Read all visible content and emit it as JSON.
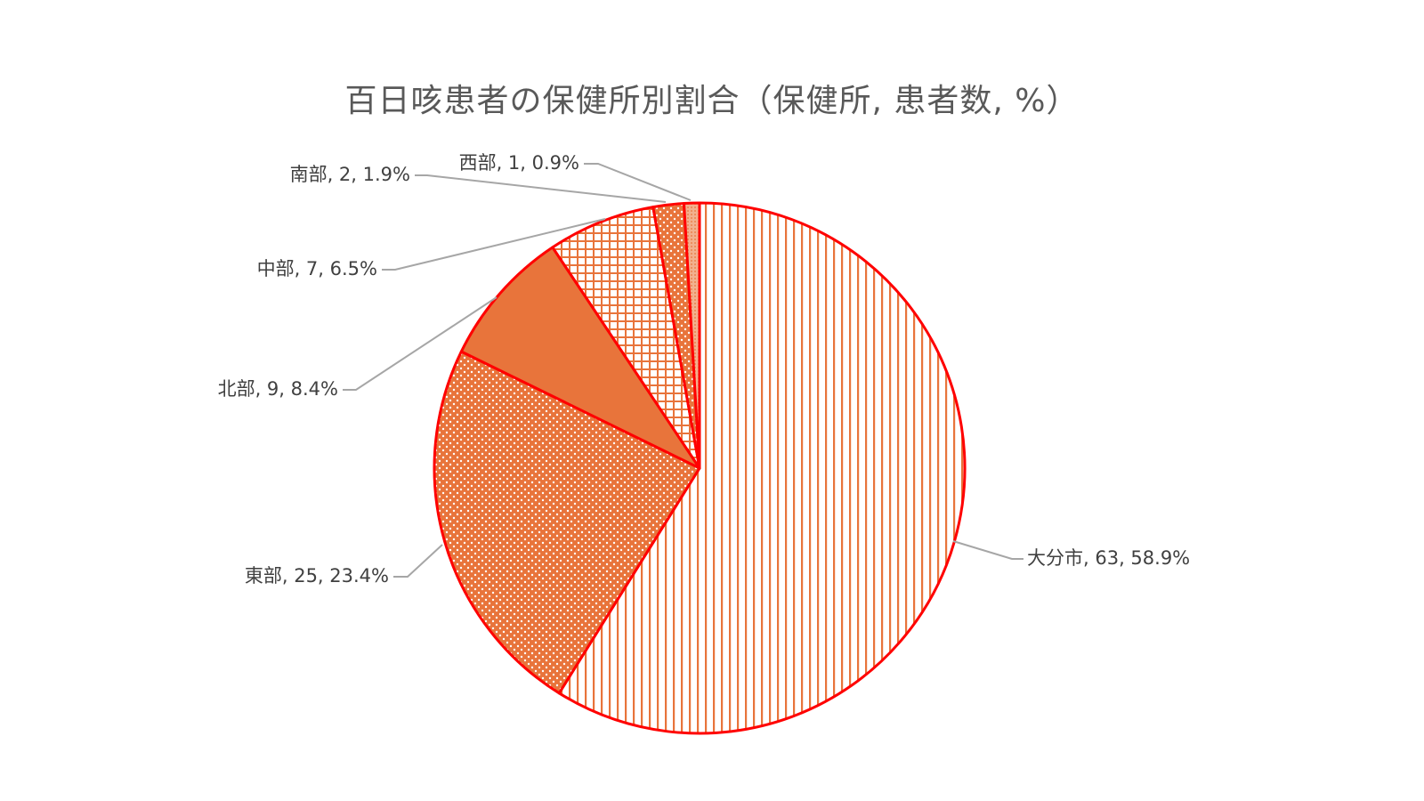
{
  "chart_data": {
    "type": "pie",
    "title": "百日咳患者の保健所別割合（保健所, 患者数, %）",
    "categories": [
      "大分市",
      "東部",
      "北部",
      "中部",
      "南部",
      "西部"
    ],
    "values": [
      63,
      25,
      9,
      7,
      2,
      1
    ],
    "percents": [
      "58.9%",
      "23.4%",
      "8.4%",
      "6.5%",
      "1.9%",
      "0.9%"
    ],
    "labels": [
      "大分市, 63, 58.9%",
      "東部, 25, 23.4%",
      "北部, 9, 8.4%",
      "中部, 7, 6.5%",
      "南部, 2, 1.9%",
      "西部, 1, 0.9%"
    ],
    "colors": {
      "fill": "#e8743b",
      "outline": "#ff0000",
      "leader": "#a6a6a6",
      "background": "#ffffff"
    },
    "patterns": [
      "vertical-lines",
      "dots",
      "solid",
      "grid",
      "dots",
      "fine-dots"
    ]
  }
}
